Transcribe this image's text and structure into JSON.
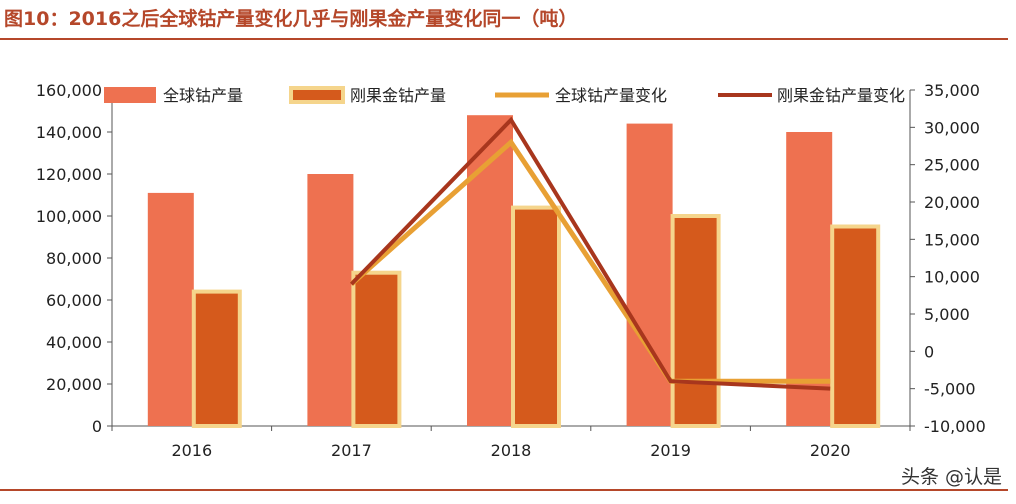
{
  "figure": {
    "title": "图10：2016之后全球钴产量变化几乎与刚果金产量变化同一（吨）",
    "watermark": "头条 @认是"
  },
  "colors": {
    "title": "#b5472a",
    "global_bar": "#ee7150",
    "drc_bar": "#d55a1c",
    "drc_bar_border": "#f5d58c",
    "global_change_line": "#e8a034",
    "drc_change_line": "#a8361d",
    "axis": "#555555"
  },
  "chart_data": {
    "type": "bar",
    "categories": [
      "2016",
      "2017",
      "2018",
      "2019",
      "2020"
    ],
    "series": [
      {
        "name": "全球钴产量",
        "type": "bar",
        "axis": "left",
        "values": [
          111000,
          120000,
          148000,
          144000,
          140000
        ]
      },
      {
        "name": "刚果金钴产量",
        "type": "bar",
        "axis": "left",
        "values": [
          64000,
          73000,
          104000,
          100000,
          95000
        ]
      },
      {
        "name": "全球钴产量变化",
        "type": "line",
        "axis": "right",
        "values": [
          null,
          9000,
          28000,
          -4000,
          -4000
        ]
      },
      {
        "name": "刚果金钴产量变化",
        "type": "line",
        "axis": "right",
        "values": [
          null,
          9000,
          31000,
          -4000,
          -5000
        ]
      }
    ],
    "y_left": {
      "min": 0,
      "max": 160000,
      "step": 20000,
      "ticks": [
        "0",
        "20,000",
        "40,000",
        "60,000",
        "80,000",
        "100,000",
        "120,000",
        "140,000",
        "160,000"
      ]
    },
    "y_right": {
      "min": -10000,
      "max": 35000,
      "step": 5000,
      "ticks": [
        "-10,000",
        "-5,000",
        "0",
        "5,000",
        "10,000",
        "15,000",
        "20,000",
        "25,000",
        "30,000",
        "35,000"
      ]
    },
    "legend": "top",
    "grid": false
  }
}
